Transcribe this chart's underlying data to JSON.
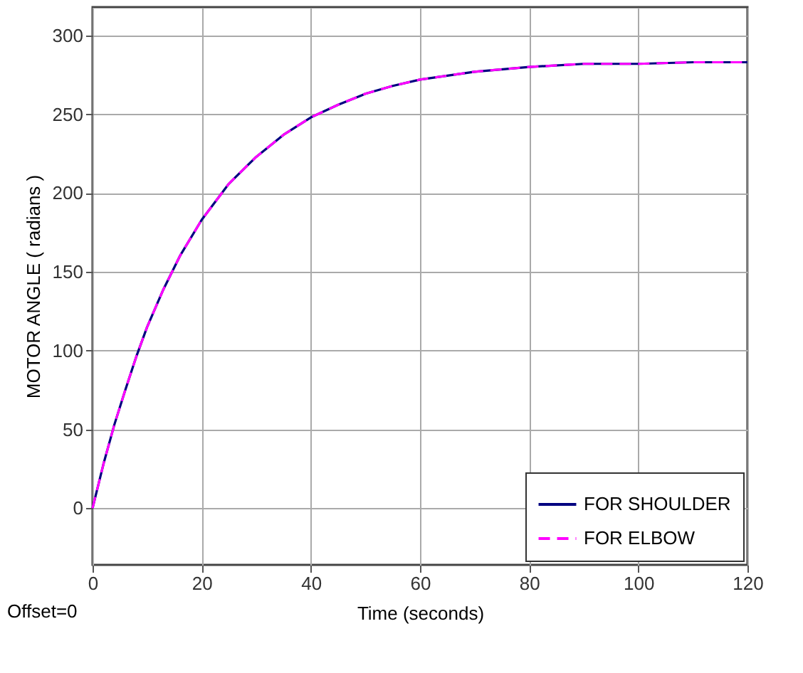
{
  "chart_data": {
    "type": "line",
    "xlabel": "Time (seconds)",
    "ylabel": "MOTOR ANGLE ( radians )",
    "annotations": [
      "Offset=0"
    ],
    "x": [
      0,
      2,
      4,
      6,
      8,
      10,
      13,
      16,
      20,
      25,
      30,
      35,
      40,
      45,
      50,
      55,
      60,
      70,
      80,
      90,
      100,
      110,
      120
    ],
    "series": [
      {
        "name": "FOR SHOULDER",
        "color": "#000080",
        "line_style": "solid",
        "values": [
          0,
          28,
          53,
          75,
          96,
          115,
          139,
          160,
          183,
          206,
          223,
          237,
          248,
          256,
          263,
          268,
          272,
          277,
          280,
          282,
          282,
          283,
          283
        ]
      },
      {
        "name": "FOR ELBOW",
        "color": "#ff00ff",
        "line_style": "dashed",
        "values": [
          0,
          28,
          53,
          75,
          96,
          115,
          139,
          160,
          183,
          206,
          223,
          237,
          248,
          256,
          263,
          268,
          272,
          277,
          280,
          282,
          282,
          283,
          283
        ]
      }
    ],
    "xlim": [
      0,
      120
    ],
    "xticks": [
      0,
      20,
      40,
      60,
      80,
      100,
      120
    ],
    "ylim": [
      -36,
      318
    ],
    "yticks": [
      0,
      50,
      100,
      150,
      200,
      250,
      300
    ],
    "grid": true,
    "legend": "bottom right",
    "marker": "none"
  }
}
